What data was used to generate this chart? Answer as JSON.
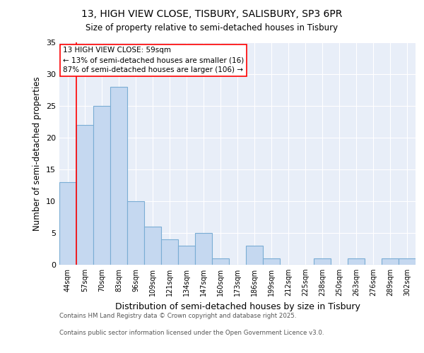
{
  "title_line1": "13, HIGH VIEW CLOSE, TISBURY, SALISBURY, SP3 6PR",
  "title_line2": "Size of property relative to semi-detached houses in Tisbury",
  "categories": [
    "44sqm",
    "57sqm",
    "70sqm",
    "83sqm",
    "96sqm",
    "109sqm",
    "121sqm",
    "134sqm",
    "147sqm",
    "160sqm",
    "173sqm",
    "186sqm",
    "199sqm",
    "212sqm",
    "225sqm",
    "238sqm",
    "250sqm",
    "263sqm",
    "276sqm",
    "289sqm",
    "302sqm"
  ],
  "values": [
    13,
    22,
    25,
    28,
    10,
    6,
    4,
    3,
    5,
    1,
    0,
    3,
    1,
    0,
    0,
    1,
    0,
    1,
    0,
    1,
    1
  ],
  "bar_color": "#c5d8f0",
  "bar_edge_color": "#7aadd4",
  "background_color": "#e8eef8",
  "xlabel": "Distribution of semi-detached houses by size in Tisbury",
  "ylabel": "Number of semi-detached properties",
  "property_line_x": 0.5,
  "property_label": "13 HIGH VIEW CLOSE: 59sqm",
  "annotation_line1": "← 13% of semi-detached houses are smaller (16)",
  "annotation_line2": "87% of semi-detached houses are larger (106) →",
  "footnote1": "Contains HM Land Registry data © Crown copyright and database right 2025.",
  "footnote2": "Contains public sector information licensed under the Open Government Licence v3.0.",
  "ylim": [
    0,
    35
  ],
  "yticks": [
    0,
    5,
    10,
    15,
    20,
    25,
    30,
    35
  ]
}
